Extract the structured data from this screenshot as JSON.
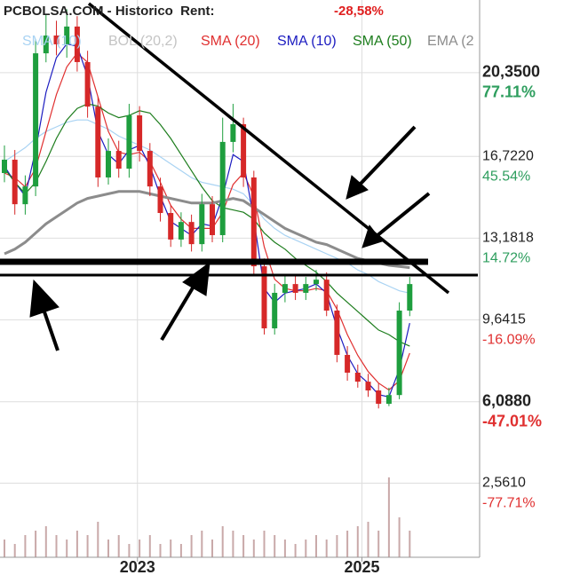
{
  "chart_data": {
    "type": "candlestick",
    "title": "PCBOLSA.COM - Historico  Rent:",
    "rent": "-28,58%",
    "categories": [
      null,
      null,
      null,
      null,
      null,
      null,
      null,
      null,
      null,
      null,
      null,
      null,
      null,
      null,
      null,
      null,
      null,
      null,
      null,
      null,
      null,
      null,
      null,
      null,
      null,
      null,
      null,
      null,
      null,
      null,
      null,
      null,
      null,
      null,
      null,
      null,
      null,
      null,
      null,
      null
    ],
    "open": [
      16.0,
      16.58,
      14.65,
      15.42,
      21.19,
      21.96,
      21.58,
      22.35,
      20.81,
      18.88,
      15.81,
      16.96,
      16.19,
      18.5,
      16.96,
      15.42,
      14.27,
      13.12,
      13.88,
      12.92,
      14.65,
      13.31,
      17.35,
      18.12,
      15.81,
      11.96,
      9.27,
      10.81,
      11.19,
      10.81,
      11.19,
      11.38,
      10.04,
      8.12,
      7.35,
      6.96,
      6.58,
      6.0,
      6.38,
      10.04
    ],
    "high": [
      17.2,
      17.0,
      15.9,
      21.8,
      22.9,
      22.6,
      23.1,
      22.8,
      21.3,
      19.3,
      17.5,
      17.4,
      19.0,
      18.9,
      17.3,
      15.8,
      14.6,
      14.3,
      14.2,
      15.1,
      15.0,
      18.4,
      19.0,
      18.4,
      16.1,
      12.3,
      11.2,
      11.6,
      11.6,
      11.5,
      11.8,
      11.7,
      10.3,
      8.5,
      7.7,
      7.3,
      6.9,
      6.7,
      10.4,
      11.5
    ],
    "low": [
      15.6,
      14.2,
      14.2,
      15.0,
      20.8,
      21.1,
      21.0,
      20.4,
      18.4,
      15.4,
      15.5,
      15.8,
      15.8,
      16.5,
      15.0,
      13.9,
      12.8,
      12.8,
      12.6,
      12.6,
      13.0,
      13.0,
      16.9,
      15.4,
      11.6,
      9.0,
      9.0,
      10.4,
      10.5,
      10.5,
      10.9,
      9.8,
      7.8,
      7.0,
      6.7,
      6.3,
      5.8,
      5.9,
      6.2,
      9.8
    ],
    "close": [
      16.58,
      14.65,
      15.42,
      21.19,
      21.96,
      21.58,
      22.35,
      20.81,
      18.88,
      15.81,
      16.96,
      16.19,
      18.5,
      16.96,
      15.42,
      14.27,
      13.12,
      13.88,
      12.92,
      14.65,
      13.31,
      17.35,
      18.12,
      15.81,
      11.96,
      9.27,
      10.81,
      11.19,
      10.81,
      11.19,
      11.38,
      10.04,
      8.12,
      7.35,
      6.96,
      6.58,
      6.0,
      6.38,
      10.04,
      11.19
    ],
    "up_color": "#1e9e3e",
    "down_color": "#d62828",
    "volume": [
      20,
      15,
      25,
      30,
      35,
      25,
      20,
      30,
      25,
      40,
      20,
      25,
      15,
      20,
      25,
      15,
      20,
      15,
      25,
      30,
      20,
      35,
      30,
      25,
      20,
      30,
      25,
      20,
      15,
      20,
      25,
      20,
      25,
      30,
      35,
      40,
      30,
      90,
      45,
      30
    ],
    "volume_color": "#c9a9a9",
    "series": [
      {
        "name": "SMA (10)",
        "color": "#a9d3f3",
        "values": [
          16.5,
          16.8,
          17.1,
          17.5,
          17.8,
          18.0,
          18.2,
          18.3,
          18.3,
          18.1,
          17.9,
          17.6,
          17.4,
          17.2,
          17.0,
          16.7,
          16.4,
          16.1,
          15.8,
          15.6,
          15.5,
          15.4,
          15.3,
          15.1,
          14.6,
          14.0,
          13.6,
          13.3,
          13.1,
          12.9,
          12.7,
          12.5,
          12.3,
          12.1,
          11.8,
          11.6,
          11.3,
          11.1,
          10.9,
          10.8
        ]
      },
      {
        "name": "BOL (20,2)",
        "color": "#c4c4c4"
      },
      {
        "name": "SMA (20)",
        "color": "#e03030",
        "values": [
          16.0,
          15.8,
          15.4,
          16.2,
          17.8,
          19.4,
          20.6,
          21.2,
          20.8,
          19.3,
          17.8,
          16.9,
          16.8,
          16.9,
          16.5,
          15.6,
          14.6,
          14.0,
          13.6,
          13.6,
          13.6,
          14.3,
          15.5,
          16.0,
          15.0,
          12.8,
          11.4,
          11.0,
          10.9,
          10.9,
          11.0,
          10.9,
          10.1,
          9.0,
          8.1,
          7.4,
          6.9,
          6.6,
          7.0,
          8.2
        ]
      },
      {
        "name": "SMA (10)",
        "color": "#1c1cc0",
        "values": [
          16.3,
          15.6,
          15.0,
          17.0,
          19.5,
          21.0,
          21.6,
          21.5,
          20.2,
          17.8,
          16.8,
          16.4,
          17.0,
          17.2,
          16.3,
          15.0,
          13.9,
          13.6,
          13.3,
          13.8,
          13.7,
          15.0,
          16.8,
          16.5,
          14.0,
          11.0,
          10.4,
          10.8,
          10.9,
          11.0,
          11.2,
          10.8,
          9.3,
          8.1,
          7.3,
          6.9,
          6.4,
          6.3,
          7.5,
          9.5
        ]
      },
      {
        "name": "SMA (50)",
        "color": "#1d7d1d",
        "values": [
          16.2,
          15.6,
          15.1,
          15.6,
          16.5,
          17.5,
          18.3,
          18.8,
          19.0,
          18.9,
          18.6,
          18.4,
          18.5,
          18.7,
          18.6,
          18.1,
          17.5,
          16.8,
          16.1,
          15.4,
          14.8,
          14.5,
          14.4,
          14.3,
          14.0,
          13.4,
          13.0,
          12.7,
          12.3,
          12.0,
          11.7,
          11.3,
          10.8,
          10.4,
          10.0,
          9.6,
          9.2,
          9.0,
          8.7,
          8.5
        ]
      },
      {
        "name": "EMA (2",
        "color": "#8c8c8c",
        "values": [
          12.5,
          12.7,
          13.0,
          13.4,
          13.8,
          14.1,
          14.4,
          14.7,
          14.9,
          15.0,
          15.1,
          15.2,
          15.2,
          15.2,
          15.1,
          15.0,
          14.9,
          14.8,
          14.7,
          14.7,
          14.7,
          14.8,
          14.9,
          14.8,
          14.5,
          14.2,
          13.9,
          13.6,
          13.4,
          13.2,
          13.0,
          12.9,
          12.7,
          12.5,
          12.3,
          12.2,
          12.1,
          12.0,
          11.95,
          11.9
        ]
      }
    ],
    "ylim": [
      -0.65,
      23.5
    ],
    "yticks": [
      {
        "value": 20.35,
        "label": "20,3500"
      },
      {
        "value": 16.722,
        "label": "16,7220"
      },
      {
        "value": 13.1818,
        "label": "13,1818"
      },
      {
        "value": 9.6415,
        "label": "9,6415"
      },
      {
        "value": 6.088,
        "label": "6,0880"
      },
      {
        "value": 2.561,
        "label": "2,5610"
      }
    ],
    "ytick_percent_labels": [
      "77.11%",
      "45.54%",
      "14.72%",
      "-16.09%",
      "-47.01%",
      "-77.71%"
    ],
    "xticks": [
      {
        "value": 12.8,
        "label": "2023"
      },
      {
        "value": 34.4,
        "label": "2025"
      }
    ],
    "grid": true
  }
}
